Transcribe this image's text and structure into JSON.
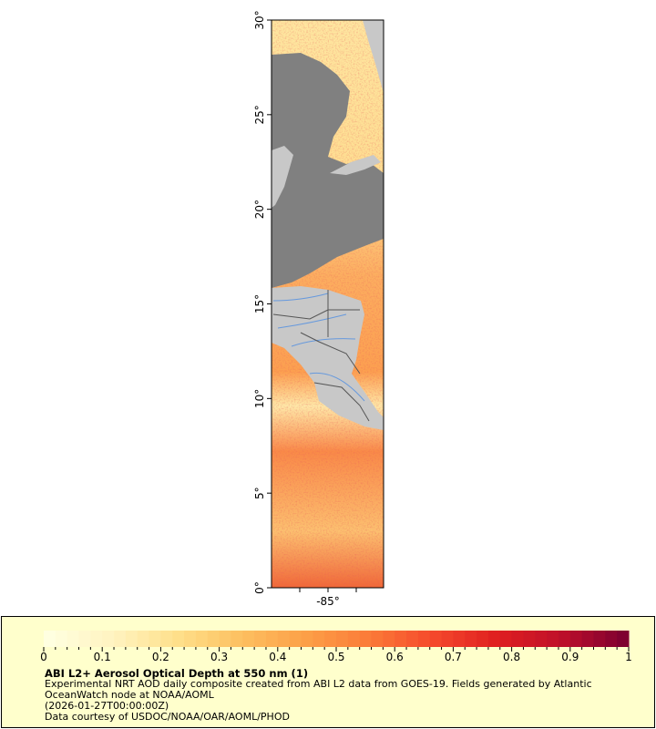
{
  "map": {
    "lat_ticks": [
      "0°",
      "5°",
      "10°",
      "15°",
      "20°",
      "25°",
      "30°"
    ],
    "lon_ticks": [
      "-85°"
    ],
    "lat_range": [
      0,
      30
    ],
    "colors": {
      "land": "#c8c8c8",
      "no_data": "#808080",
      "rivers": "#6699dd",
      "borders": "#555555"
    }
  },
  "legend": {
    "colorbar_ticks": [
      "0",
      "0.1",
      "0.2",
      "0.3",
      "0.4",
      "0.5",
      "0.6",
      "0.7",
      "0.8",
      "0.9",
      "1"
    ],
    "colorbar_range": [
      0,
      1
    ],
    "colormap": [
      "#ffffe0",
      "#fff3c0",
      "#fee08b",
      "#fdc060",
      "#fca048",
      "#fb7c38",
      "#f54a2c",
      "#e02020",
      "#c0102a",
      "#7f0030"
    ],
    "title": "ABI L2+ Aerosol Optical Depth at 550 nm (1)",
    "line1": "Experimental NRT AOD daily composite created from ABI L2 data from GOES-19. Fields generated by Atlantic",
    "line2": "OceanWatch node at NOAA/AOML",
    "line3": "(2026-01-27T00:00:00Z)",
    "line4": "Data courtesy of USDOC/NOAA/OAR/AOML/PHOD"
  }
}
